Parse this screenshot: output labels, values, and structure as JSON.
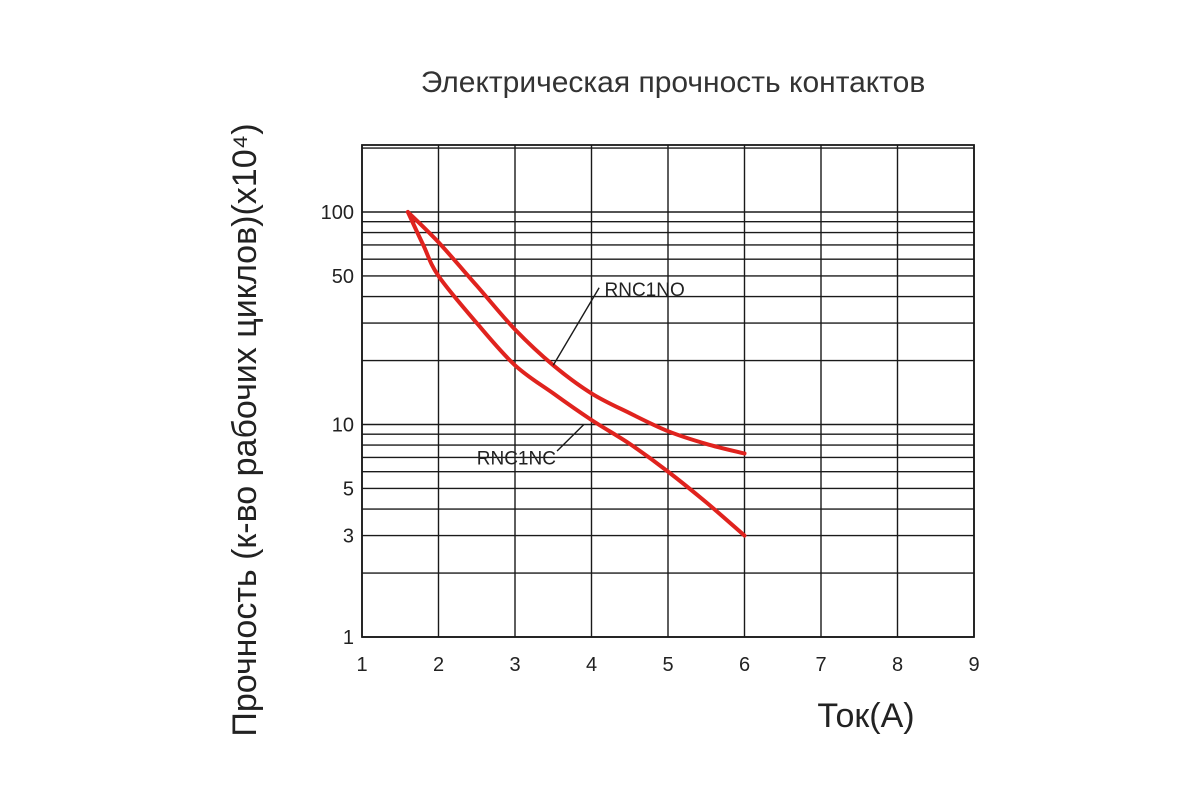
{
  "chart_data": {
    "type": "line",
    "title": "Электрическая прочность контактов",
    "xlabel": "Ток(А)",
    "ylabel": "Прочность (к-во рабочих циклов)(х10⁴)",
    "x_scale": "linear",
    "y_scale": "log",
    "xlim": [
      1,
      9
    ],
    "ylim": [
      1,
      200
    ],
    "x_ticks": [
      1,
      2,
      3,
      4,
      5,
      6,
      7,
      8,
      9
    ],
    "y_ticks": [
      1,
      3,
      5,
      10,
      50,
      100
    ],
    "y_tick_labels": [
      "1",
      "3",
      "5",
      "10",
      "50",
      "100"
    ],
    "grid": true,
    "series": [
      {
        "name": "RNC1NO",
        "color": "#e0231e",
        "x": [
          1.6,
          2.0,
          2.5,
          3.0,
          3.5,
          4.0,
          4.5,
          5.0,
          5.5,
          6.0
        ],
        "y": [
          100,
          72,
          45,
          28,
          19,
          14,
          11.3,
          9.3,
          8.1,
          7.3
        ]
      },
      {
        "name": "RNC1NC",
        "color": "#e0231e",
        "x": [
          1.6,
          1.8,
          2.0,
          2.5,
          3.0,
          3.5,
          4.0,
          4.5,
          5.0,
          5.5,
          6.0
        ],
        "y": [
          100,
          70,
          50,
          30,
          19,
          14,
          10.5,
          8.1,
          6.0,
          4.3,
          3.0
        ]
      }
    ]
  }
}
